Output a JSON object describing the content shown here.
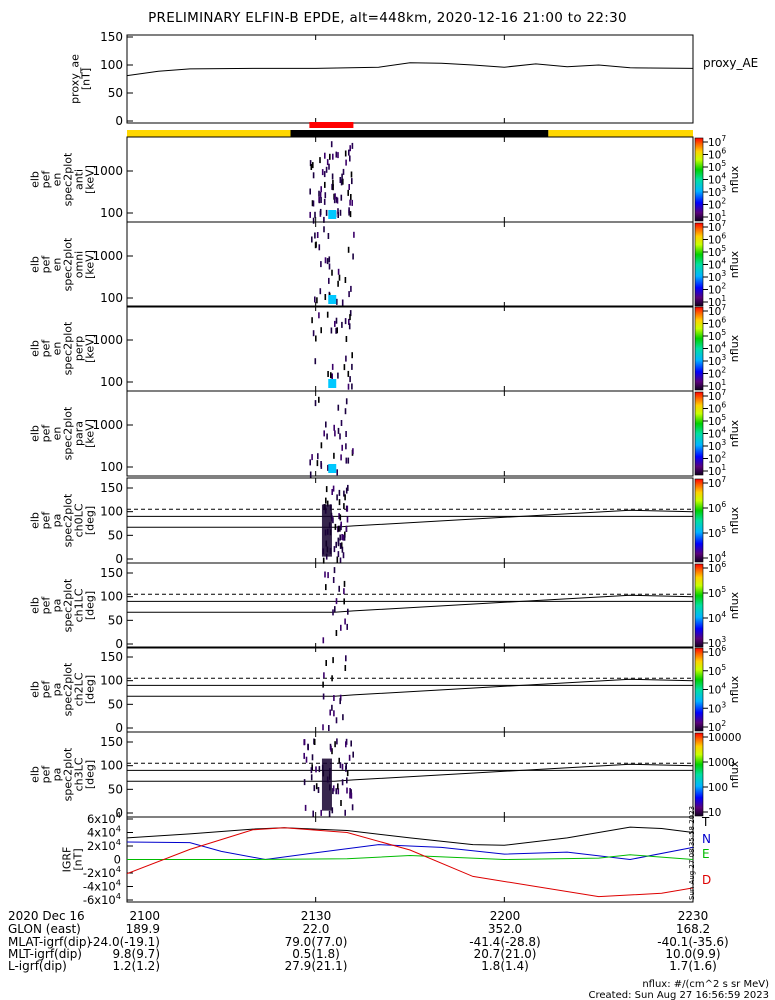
{
  "title": "PRELIMINARY ELFIN-B EPDE, alt=448km, 2020-12-16 21:00 to 22:30",
  "colors": {
    "day": "#ffd700",
    "night": "#000000",
    "science": "#ff0000",
    "T": "#000000",
    "N": "#0000cc",
    "E": "#00bb00",
    "D": "#dd0000"
  },
  "sunlight_bar": [
    {
      "kind": "day",
      "from": "21:00",
      "to": "21:26"
    },
    {
      "kind": "night",
      "from": "21:26",
      "to": "22:07"
    },
    {
      "kind": "day",
      "from": "22:07",
      "to": "22:30"
    }
  ],
  "science_zone": {
    "from": "21:29",
    "to": "21:36"
  },
  "x_ticks": [
    {
      "t": "21:00",
      "label": "2100"
    },
    {
      "t": "21:30",
      "label": "2130"
    },
    {
      "t": "22:00",
      "label": "2200"
    },
    {
      "t": "22:30",
      "label": "2230"
    }
  ],
  "proxy_ae": {
    "ylabel_lines": [
      "proxy_ae",
      "[nT]"
    ],
    "legend": "proxy_AE",
    "ylim": [
      0,
      150
    ],
    "ticks": [
      "0",
      "50",
      "100",
      "150"
    ],
    "points": [
      [
        "21:00",
        81
      ],
      [
        "21:05",
        89
      ],
      [
        "21:10",
        93
      ],
      [
        "21:20",
        94
      ],
      [
        "21:30",
        94
      ],
      [
        "21:40",
        96
      ],
      [
        "21:45",
        104
      ],
      [
        "21:50",
        103
      ],
      [
        "21:55",
        100
      ],
      [
        "22:00",
        96
      ],
      [
        "22:05",
        102
      ],
      [
        "22:10",
        97
      ],
      [
        "22:15",
        100
      ],
      [
        "22:20",
        95
      ],
      [
        "22:30",
        94
      ]
    ]
  },
  "energy_panels": [
    {
      "ylabel_lines": [
        "elb",
        "pef",
        "en",
        "spec2plot",
        "anti",
        "[keV]"
      ],
      "ticks": [
        "100",
        "1000"
      ],
      "cbar_ticks": [
        "10",
        "10",
        "10",
        "10",
        "10",
        "10",
        "10"
      ],
      "cbar_exps": [
        "1",
        "2",
        "3",
        "4",
        "5",
        "6",
        "7"
      ],
      "cbar_label": "nflux"
    },
    {
      "ylabel_lines": [
        "elb",
        "pef",
        "en",
        "spec2plot",
        "omni",
        "[keV]"
      ],
      "ticks": [
        "100",
        "1000"
      ],
      "cbar_ticks": [
        "10",
        "10",
        "10",
        "10",
        "10",
        "10",
        "10"
      ],
      "cbar_exps": [
        "1",
        "2",
        "3",
        "4",
        "5",
        "6",
        "7"
      ],
      "cbar_label": "nflux"
    },
    {
      "ylabel_lines": [
        "elb",
        "pef",
        "en",
        "spec2plot",
        "perp",
        "[keV]"
      ],
      "ticks": [
        "100",
        "1000"
      ],
      "cbar_ticks": [
        "10",
        "10",
        "10",
        "10",
        "10",
        "10",
        "10"
      ],
      "cbar_exps": [
        "1",
        "2",
        "3",
        "4",
        "5",
        "6",
        "7"
      ],
      "cbar_label": "nflux"
    },
    {
      "ylabel_lines": [
        "elb",
        "pef",
        "en",
        "spec2plot",
        "para",
        "[keV]"
      ],
      "ticks": [
        "100",
        "1000"
      ],
      "cbar_ticks": [
        "10",
        "10",
        "10",
        "10",
        "10",
        "10",
        "10"
      ],
      "cbar_exps": [
        "1",
        "2",
        "3",
        "4",
        "5",
        "6",
        "7"
      ],
      "cbar_label": "nflux"
    }
  ],
  "pitch_panels": [
    {
      "ylabel_lines": [
        "elb",
        "pef",
        "pa",
        "spec2plot",
        "ch0LC",
        "[deg]"
      ],
      "ticks": [
        "0",
        "50",
        "100",
        "150"
      ],
      "cbar_ticks": [
        "10",
        "10",
        "10",
        "10"
      ],
      "cbar_exps": [
        "4",
        "5",
        "6",
        "7"
      ],
      "cbar_label": "nflux"
    },
    {
      "ylabel_lines": [
        "elb",
        "pef",
        "pa",
        "spec2plot",
        "ch1LC",
        "[deg]"
      ],
      "ticks": [
        "0",
        "50",
        "100",
        "150"
      ],
      "cbar_ticks": [
        "10",
        "10",
        "10",
        "10"
      ],
      "cbar_exps": [
        "3",
        "4",
        "5",
        "6"
      ],
      "cbar_label": "nflux"
    },
    {
      "ylabel_lines": [
        "elb",
        "pef",
        "pa",
        "spec2plot",
        "ch2LC",
        "[deg]"
      ],
      "ticks": [
        "0",
        "50",
        "100",
        "150"
      ],
      "cbar_ticks": [
        "10",
        "10",
        "10",
        "10",
        "10"
      ],
      "cbar_exps": [
        "2",
        "3",
        "4",
        "5",
        "6"
      ],
      "cbar_label": "nflux"
    },
    {
      "ylabel_lines": [
        "elb",
        "pef",
        "pa",
        "spec2plot",
        "ch3LC",
        "[deg]"
      ],
      "ticks": [
        "0",
        "50",
        "100",
        "150"
      ],
      "cbar_ticks": [
        "10",
        "100",
        "1000",
        "10000"
      ],
      "cbar_exps": [
        "",
        "",
        "",
        ""
      ],
      "cbar_label": "nflux"
    }
  ],
  "loss_cone": {
    "solid_lo": [
      [
        "21:00",
        67
      ],
      [
        "21:33",
        67
      ],
      [
        "21:36",
        70
      ],
      [
        "22:00",
        88
      ],
      [
        "22:20",
        103
      ],
      [
        "22:30",
        100
      ]
    ],
    "solid_hi": [
      [
        "21:00",
        90
      ],
      [
        "22:30",
        90
      ]
    ],
    "dashed": [
      [
        "21:00",
        105
      ],
      [
        "22:30",
        105
      ]
    ]
  },
  "igrf": {
    "ylabel_lines": [
      "IGRF",
      "[nT]"
    ],
    "ylim": [
      -60000,
      60000
    ],
    "ticks": [
      {
        "base": "-6x10",
        "exp": "4"
      },
      {
        "base": "-4x10",
        "exp": "4"
      },
      {
        "base": "-2x10",
        "exp": "4"
      },
      {
        "base": "0",
        "exp": ""
      },
      {
        "base": "2x10",
        "exp": "4"
      },
      {
        "base": "4x10",
        "exp": "4"
      },
      {
        "base": "6x10",
        "exp": "4"
      }
    ],
    "series": [
      {
        "name": "T",
        "points": [
          [
            "21:00",
            32000
          ],
          [
            "21:10",
            38000
          ],
          [
            "21:20",
            45000
          ],
          [
            "21:25",
            47000
          ],
          [
            "21:35",
            43000
          ],
          [
            "21:45",
            32000
          ],
          [
            "21:55",
            22000
          ],
          [
            "22:00",
            21000
          ],
          [
            "22:10",
            32000
          ],
          [
            "22:20",
            48000
          ],
          [
            "22:25",
            46000
          ],
          [
            "22:30",
            40000
          ]
        ]
      },
      {
        "name": "N",
        "points": [
          [
            "21:00",
            26000
          ],
          [
            "21:10",
            25000
          ],
          [
            "21:15",
            12000
          ],
          [
            "21:22",
            0
          ],
          [
            "21:30",
            10000
          ],
          [
            "21:40",
            22000
          ],
          [
            "21:50",
            18000
          ],
          [
            "22:00",
            8000
          ],
          [
            "22:10",
            11000
          ],
          [
            "22:20",
            0
          ],
          [
            "22:30",
            18000
          ]
        ]
      },
      {
        "name": "E",
        "points": [
          [
            "21:00",
            0
          ],
          [
            "21:20",
            0
          ],
          [
            "21:35",
            1000
          ],
          [
            "21:45",
            6000
          ],
          [
            "22:00",
            0
          ],
          [
            "22:15",
            2000
          ],
          [
            "22:20",
            7000
          ],
          [
            "22:30",
            0
          ]
        ]
      },
      {
        "name": "D",
        "points": [
          [
            "21:00",
            -21000
          ],
          [
            "21:10",
            15000
          ],
          [
            "21:20",
            44000
          ],
          [
            "21:25",
            47000
          ],
          [
            "21:35",
            40000
          ],
          [
            "21:45",
            14000
          ],
          [
            "21:55",
            -25000
          ],
          [
            "22:05",
            -40000
          ],
          [
            "22:15",
            -55000
          ],
          [
            "22:25",
            -50000
          ],
          [
            "22:30",
            -42000
          ]
        ]
      }
    ]
  },
  "ephemeris": {
    "rows": [
      {
        "label": "2020 Dec 16",
        "values": [
          "2100",
          "2130",
          "2200",
          "2230"
        ]
      },
      {
        "label": "GLON (east)",
        "values": [
          "189.9",
          "22.0",
          "352.0",
          "168.2"
        ]
      },
      {
        "label": "MLAT-igrf(dip)",
        "values": [
          "-24.0(-19.1)",
          "79.0(77.0)",
          "-41.4(-28.8)",
          "-40.1(-35.6)"
        ]
      },
      {
        "label": "MLT-igrf(dip)",
        "values": [
          "9.8(9.7)",
          "0.5(1.8)",
          "20.7(21.0)",
          "10.0(9.9)"
        ]
      },
      {
        "label": "L-igrf(dip)",
        "values": [
          "1.2(1.2)",
          "27.9(21.1)",
          "1.8(1.4)",
          "1.7(1.6)"
        ]
      }
    ]
  },
  "footer": {
    "units": "nflux: #/(cm^2 s sr MeV)",
    "created": "Created: Sun Aug 27 16:56:59 2023",
    "side_stamp": "Sun Aug 27 08:35:58 2023"
  }
}
